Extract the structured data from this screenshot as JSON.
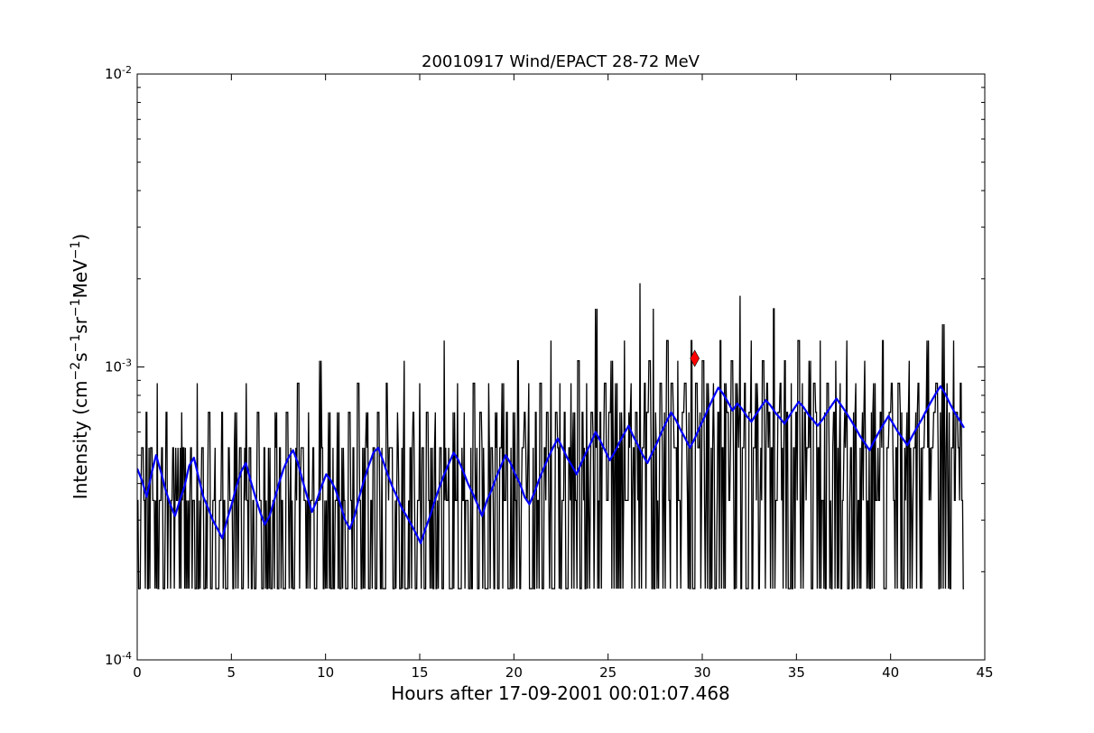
{
  "chart_data": {
    "type": "line",
    "title": "20010917 Wind/EPACT 28-72 MeV",
    "xlabel": "Hours after 17-09-2001 00:01:07.468",
    "ylabel": {
      "prefix": "Intensity (cm",
      "sup1": "−2",
      "part2": "s",
      "sup2": "−1",
      "part3": "sr",
      "sup3": "−1",
      "part4": "MeV",
      "sup4": "−1",
      "suffix": ")"
    },
    "x_scale": "linear",
    "y_scale": "log",
    "xlim": [
      0,
      45
    ],
    "ylim": [
      0.0001,
      0.01
    ],
    "x_ticks": [
      0,
      5,
      10,
      15,
      20,
      25,
      30,
      35,
      40,
      45
    ],
    "x_tick_labels": [
      "0",
      "5",
      "10",
      "15",
      "20",
      "25",
      "30",
      "35",
      "40",
      "45"
    ],
    "y_ticks": [
      {
        "value": 0.0001,
        "base": "10",
        "exp": "-4"
      },
      {
        "value": 0.001,
        "base": "10",
        "exp": "-3"
      },
      {
        "value": 0.01,
        "base": "10",
        "exp": "-2"
      }
    ],
    "grid": false,
    "legend": "none",
    "series": [
      {
        "color": "#000000",
        "x_start": 0.0,
        "x_end": 43.9,
        "levels": [
          0.000175,
          0.00035,
          0.00053,
          0.0007,
          0.00088
        ],
        "values": [
          0.00035,
          0.000175,
          0.00053,
          0.00035,
          0.0007,
          0.000175,
          0.00053,
          0.00035,
          0.000175,
          0.00088,
          0.00035,
          0.00053,
          0.000175,
          0.0007,
          0.00035,
          0.000175,
          0.00053,
          0.00035,
          0.00035,
          0.000175,
          0.0007,
          0.00053,
          0.000175,
          0.00035,
          0.00053,
          0.00035,
          0.000175,
          0.00088,
          0.00035,
          0.00053,
          0.000175,
          0.00035,
          0.0007,
          0.000175,
          0.00035,
          0.00053,
          0.000175,
          0.00035,
          0.0007,
          0.00035,
          0.000175,
          0.00053,
          0.00035,
          0.000175,
          0.0007,
          0.00035,
          0.00053,
          0.000175,
          0.00035,
          0.00088,
          0.000175,
          0.00053,
          0.00035,
          0.000175,
          0.0007,
          0.00035,
          0.000175,
          0.00053,
          0.00035,
          0.00053,
          0.000175,
          0.00035,
          0.0007,
          0.000175,
          0.00053,
          0.00035,
          0.000175,
          0.0007,
          0.00035,
          0.00053,
          0.000175,
          0.00035,
          0.00088,
          0.000175,
          0.00053,
          0.00035,
          0.000175,
          0.0007,
          0.00035,
          0.00053,
          0.000175,
          0.00035,
          0.00105,
          0.00053,
          0.000175,
          0.00035,
          0.0007,
          0.000175,
          0.00053,
          0.00035,
          0.0007,
          0.000175,
          0.00053,
          0.00035,
          0.000175,
          0.0007,
          0.00035,
          0.00053,
          0.000175,
          0.00088,
          0.00035,
          0.000175,
          0.00053,
          0.0007,
          0.000175,
          0.00035,
          0.00053,
          0.000175,
          0.0007,
          0.00035,
          0.00053,
          0.000175,
          0.00088,
          0.00035,
          0.00053,
          0.000175,
          0.00035,
          0.0007,
          0.000175,
          0.00053,
          0.00105,
          0.000175,
          0.00035,
          0.00053,
          0.0007,
          0.000175,
          0.00035,
          0.00088,
          0.00053,
          0.000175,
          0.0007,
          0.00035,
          0.00053,
          0.000175,
          0.0007,
          0.00035,
          0.00053,
          0.000175,
          0.00123,
          0.00035,
          0.00053,
          0.000175,
          0.0007,
          0.00035,
          0.00088,
          0.000175,
          0.00053,
          0.0007,
          0.00035,
          0.000175,
          0.00053,
          0.00088,
          0.00035,
          0.000175,
          0.0007,
          0.00053,
          0.00035,
          0.000175,
          0.00088,
          0.00053,
          0.00035,
          0.0007,
          0.000175,
          0.00053,
          0.00088,
          0.00035,
          0.0007,
          0.000175,
          0.00053,
          0.0007,
          0.00035,
          0.00105,
          0.000175,
          0.00053,
          0.0007,
          0.00035,
          0.00088,
          0.000175,
          0.00053,
          0.0007,
          0.00035,
          0.00088,
          0.000175,
          0.00053,
          0.0007,
          0.00035,
          0.00123,
          0.000175,
          0.0007,
          0.00053,
          0.00088,
          0.00035,
          0.0007,
          0.000175,
          0.00053,
          0.00088,
          0.0007,
          0.00035,
          0.00105,
          0.000175,
          0.0007,
          0.00053,
          0.00088,
          0.00035,
          0.0007,
          0.00053,
          0.00158,
          0.000175,
          0.0007,
          0.00053,
          0.00088,
          0.00035,
          0.0007,
          0.00105,
          0.00053,
          0.00088,
          0.000175,
          0.0007,
          0.00053,
          0.00123,
          0.00035,
          0.0007,
          0.00088,
          0.00053,
          0.0007,
          0.00035,
          0.00193,
          0.00053,
          0.00088,
          0.0007,
          0.00105,
          0.00053,
          0.00158,
          0.0007,
          0.00035,
          0.00088,
          0.00053,
          0.0007,
          0.00123,
          0.00035,
          0.00088,
          0.0007,
          0.00053,
          0.00105,
          0.00035,
          0.0007,
          0.00088,
          0.00053,
          0.0007,
          0.00123,
          0.000175,
          0.00088,
          0.00053,
          0.0007,
          0.00105,
          0.00035,
          0.00088,
          0.0007,
          0.00053,
          0.00088,
          0.000175,
          0.0007,
          0.00123,
          0.00053,
          0.00088,
          0.0007,
          0.00035,
          0.00105,
          0.00053,
          0.00088,
          0.0007,
          0.00175,
          0.00053,
          0.00088,
          0.000175,
          0.0007,
          0.00123,
          0.00053,
          0.00088,
          0.0007,
          0.00035,
          0.00105,
          0.00053,
          0.00088,
          0.0007,
          0.00053,
          0.00158,
          0.00035,
          0.0007,
          0.00088,
          0.00053,
          0.00105,
          0.0007,
          0.000175,
          0.00088,
          0.00053,
          0.0007,
          0.00123,
          0.00035,
          0.00088,
          0.0007,
          0.00053,
          0.00105,
          0.000175,
          0.00088,
          0.0007,
          0.00053,
          0.00123,
          0.00035,
          0.0007,
          0.00088,
          0.00053,
          0.000175,
          0.0007,
          0.00105,
          0.00053,
          0.00088,
          0.00035,
          0.0007,
          0.00123,
          0.000175,
          0.00053,
          0.0007,
          0.00088,
          0.00035,
          0.00053,
          0.0007,
          0.00105,
          0.000175,
          0.00053,
          0.0007,
          0.00088,
          0.00035,
          0.00053,
          0.0007,
          0.00123,
          0.000175,
          0.00053,
          0.0007,
          0.00088,
          0.00035,
          0.00053,
          0.00088,
          0.0007,
          0.000175,
          0.00053,
          0.0007,
          0.00105,
          0.00035,
          0.00053,
          0.0007,
          0.00088,
          0.000175,
          0.00053,
          0.0007,
          0.00123,
          0.00035,
          0.00053,
          0.0007,
          0.00088,
          0.00053,
          0.0007,
          0.0014,
          0.00053,
          0.00088,
          0.0007,
          0.00053,
          0.00123,
          0.0007,
          0.00053,
          0.00088,
          0.00035
        ]
      },
      {
        "color": "#0000ff",
        "x_start": 0.0,
        "x_end": 43.9,
        "values": [
          0.00045,
          0.00041,
          0.00036,
          0.00043,
          0.0005,
          0.00044,
          0.00038,
          0.00034,
          0.00031,
          0.00035,
          0.00039,
          0.00046,
          0.00049,
          0.00042,
          0.00036,
          0.00033,
          0.0003,
          0.00028,
          0.00026,
          0.0003,
          0.00034,
          0.00039,
          0.00044,
          0.00047,
          0.00041,
          0.00036,
          0.00032,
          0.00029,
          0.00031,
          0.00035,
          0.0004,
          0.00045,
          0.00049,
          0.00052,
          0.00047,
          0.00041,
          0.00036,
          0.00032,
          0.00035,
          0.00039,
          0.00043,
          0.00041,
          0.00038,
          0.00034,
          0.0003,
          0.00028,
          0.00031,
          0.00036,
          0.00041,
          0.00046,
          0.00051,
          0.00053,
          0.00048,
          0.00043,
          0.00039,
          0.00036,
          0.00033,
          0.00031,
          0.00029,
          0.00027,
          0.00025,
          0.00028,
          0.00031,
          0.00035,
          0.00039,
          0.00043,
          0.00047,
          0.00051,
          0.00048,
          0.00044,
          0.0004,
          0.00037,
          0.00034,
          0.00031,
          0.00035,
          0.00038,
          0.00042,
          0.00046,
          0.0005,
          0.00047,
          0.00043,
          0.0004,
          0.00036,
          0.00034,
          0.00037,
          0.00041,
          0.00045,
          0.00049,
          0.00053,
          0.00057,
          0.00053,
          0.00049,
          0.00046,
          0.00043,
          0.00047,
          0.00051,
          0.00055,
          0.0006,
          0.00056,
          0.00052,
          0.00048,
          0.00051,
          0.00055,
          0.00059,
          0.00063,
          0.00058,
          0.00054,
          0.0005,
          0.00047,
          0.00051,
          0.00055,
          0.0006,
          0.00065,
          0.0007,
          0.00066,
          0.00061,
          0.00057,
          0.00053,
          0.00057,
          0.00062,
          0.00067,
          0.00073,
          0.00079,
          0.00085,
          0.00081,
          0.00076,
          0.00071,
          0.00075,
          0.00072,
          0.00068,
          0.00065,
          0.00069,
          0.00073,
          0.00077,
          0.00074,
          0.0007,
          0.00067,
          0.00064,
          0.00068,
          0.00072,
          0.00076,
          0.00073,
          0.00069,
          0.00066,
          0.00063,
          0.00066,
          0.0007,
          0.00074,
          0.00078,
          0.00074,
          0.0007,
          0.00066,
          0.00062,
          0.00058,
          0.00055,
          0.00052,
          0.00056,
          0.0006,
          0.00064,
          0.00068,
          0.00064,
          0.0006,
          0.00057,
          0.00054,
          0.00058,
          0.00062,
          0.00066,
          0.00071,
          0.00076,
          0.00081,
          0.00086,
          0.00081,
          0.00075,
          0.0007,
          0.00066,
          0.00062
        ]
      }
    ],
    "markers": [
      {
        "x": 29.6,
        "y": 0.00107,
        "shape": "diamond",
        "color": "#ff0000"
      }
    ]
  }
}
